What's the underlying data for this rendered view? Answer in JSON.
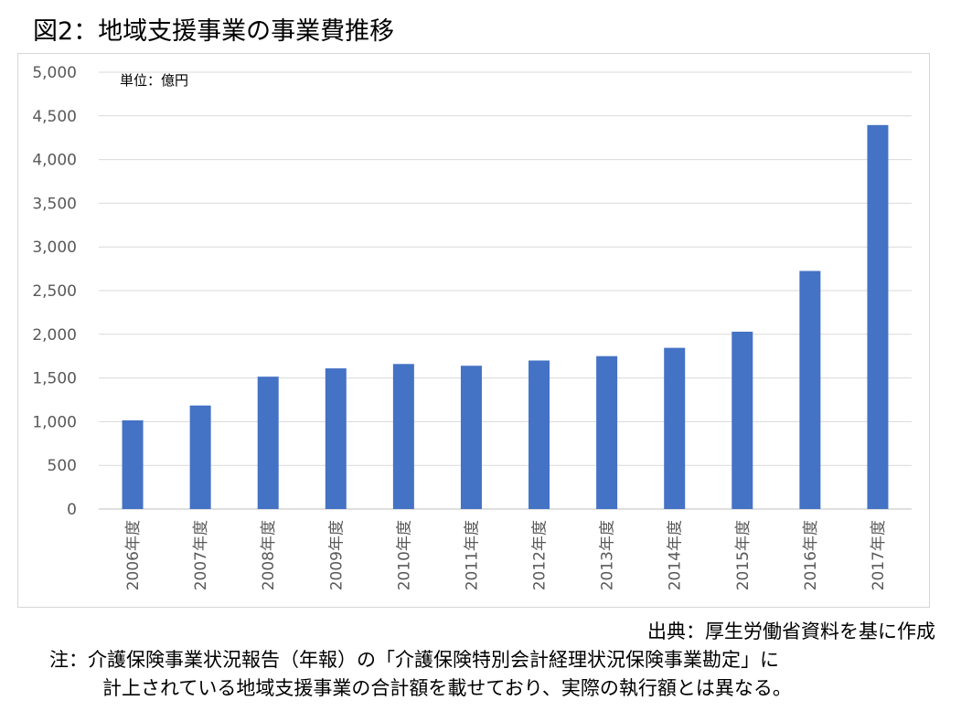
{
  "figure": {
    "title": "図2：地域支援事業の事業費推移"
  },
  "chart_data": {
    "type": "bar",
    "title": "",
    "unit_label": "単位：億円",
    "xlabel": "",
    "ylabel": "",
    "categories": [
      "2006年度",
      "2007年度",
      "2008年度",
      "2009年度",
      "2010年度",
      "2011年度",
      "2012年度",
      "2013年度",
      "2014年度",
      "2015年度",
      "2016年度",
      "2017年度"
    ],
    "values": [
      1015,
      1185,
      1515,
      1610,
      1660,
      1640,
      1700,
      1750,
      1845,
      2030,
      2725,
      4395
    ],
    "ylim": [
      0,
      5000
    ],
    "yticks": [
      "0",
      "500",
      "1,000",
      "1,500",
      "2,000",
      "2,500",
      "3,000",
      "3,500",
      "4,000",
      "4,500",
      "5,000"
    ],
    "grid": true,
    "legend": "none",
    "bar_color": "#4472c4",
    "grid_color": "#d9d9d9"
  },
  "footer": {
    "source": "出典：厚生労働省資料を基に作成",
    "note_line1": "注：介護保険事業状況報告（年報）の「介護保険特別会計経理状況保険事業勘定」に",
    "note_line2": "計上されている地域支援事業の合計額を載せており、実際の執行額とは異なる。"
  }
}
